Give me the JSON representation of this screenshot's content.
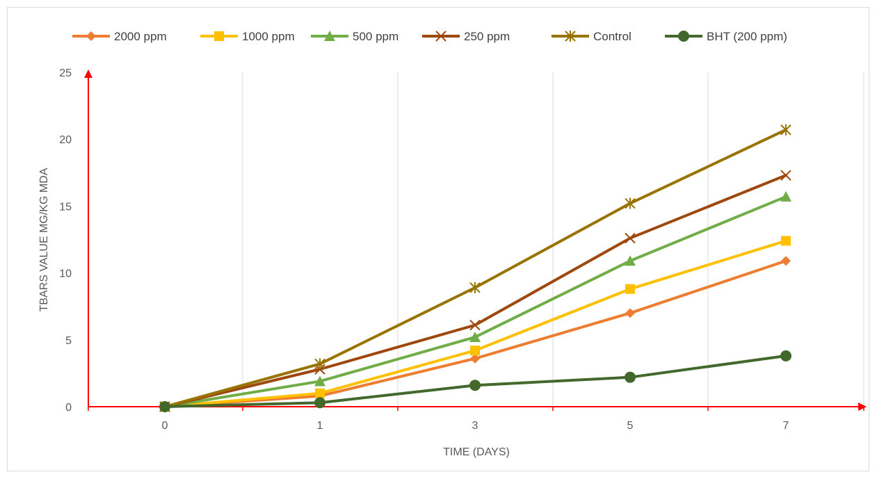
{
  "chart_data": {
    "type": "line",
    "x": [
      "0",
      "1",
      "3",
      "5",
      "7"
    ],
    "xlabel": "TIME (DAYS)",
    "ylabel": "TBARS VALUE MG/KG MDA",
    "ylim": [
      0,
      25
    ],
    "yticks": [
      "0",
      "5",
      "10",
      "15",
      "20",
      "25"
    ],
    "grid": "vertical",
    "legend_position": "top",
    "axis_color": "#ff0000",
    "series": [
      {
        "name": "2000 ppm",
        "values": [
          0,
          0.8,
          3.6,
          7.0,
          10.9
        ],
        "color": "#ed7d31",
        "marker": "diamond"
      },
      {
        "name": "1000 ppm",
        "values": [
          0,
          1.0,
          4.2,
          8.8,
          12.4
        ],
        "color": "#ffc000",
        "marker": "square"
      },
      {
        "name": "500 ppm",
        "values": [
          0,
          1.9,
          5.2,
          10.9,
          15.7
        ],
        "color": "#70ad47",
        "marker": "triangle"
      },
      {
        "name": "250 ppm",
        "values": [
          0,
          2.8,
          6.1,
          12.6,
          17.3
        ],
        "color": "#9e480e",
        "marker": "x"
      },
      {
        "name": "Control",
        "values": [
          0,
          3.2,
          8.9,
          15.2,
          20.7
        ],
        "color": "#997300",
        "marker": "star"
      },
      {
        "name": "BHT (200 ppm)",
        "values": [
          0,
          0.3,
          1.6,
          2.2,
          3.8
        ],
        "color": "#43682b",
        "marker": "circle"
      }
    ]
  }
}
